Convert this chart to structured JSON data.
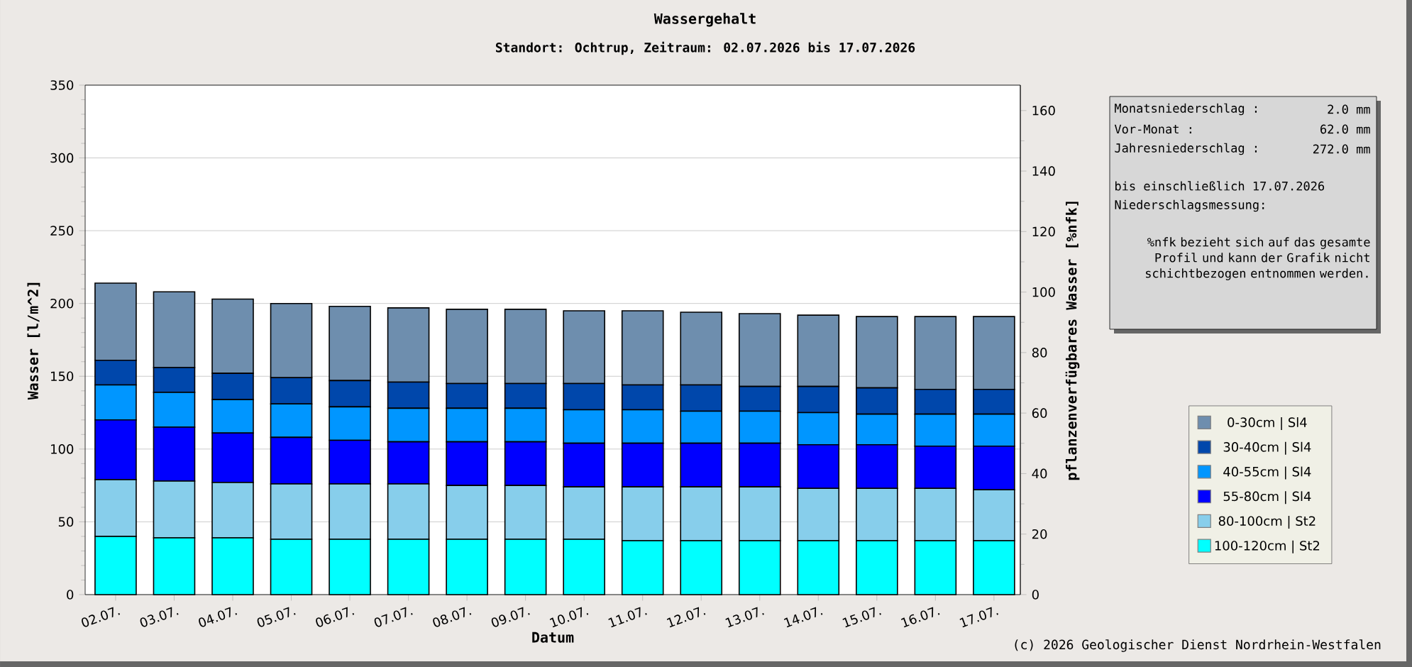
{
  "chart_data": {
    "type": "bar",
    "stacked": true,
    "title": "Wassergehalt",
    "subtitle": "Standort: Ochtrup, Zeitraum: 02.07.2026 bis 17.07.2026",
    "xlabel": "Datum",
    "ylabel": "Wasser [l/m^2]",
    "y2label": "pflanzenverfügbares Wasser [%nfk]",
    "categories": [
      "02.07.",
      "03.07.",
      "04.07.",
      "05.07.",
      "06.07.",
      "07.07.",
      "08.07.",
      "09.07.",
      "10.07.",
      "11.07.",
      "12.07.",
      "13.07.",
      "14.07.",
      "15.07.",
      "16.07.",
      "17.07."
    ],
    "series": [
      {
        "name": "100-120cm | St2",
        "color": "#00ffff",
        "values": [
          40,
          39,
          39,
          38,
          38,
          38,
          38,
          38,
          38,
          37,
          37,
          37,
          37,
          37,
          37,
          37
        ]
      },
      {
        "name": "80-100cm | St2",
        "color": "#87ceeb",
        "values": [
          39,
          39,
          38,
          38,
          38,
          38,
          37,
          37,
          36,
          37,
          37,
          37,
          36,
          36,
          36,
          35
        ]
      },
      {
        "name": "55-80cm | Sl4",
        "color": "#0000ff",
        "values": [
          41,
          37,
          34,
          32,
          30,
          29,
          30,
          30,
          30,
          30,
          30,
          30,
          30,
          30,
          29,
          30
        ]
      },
      {
        "name": "40-55cm | Sl4",
        "color": "#0096ff",
        "values": [
          24,
          24,
          23,
          23,
          23,
          23,
          23,
          23,
          23,
          23,
          22,
          22,
          22,
          21,
          22,
          22
        ]
      },
      {
        "name": "30-40cm | Sl4",
        "color": "#0047ab",
        "values": [
          17,
          17,
          18,
          18,
          18,
          18,
          17,
          17,
          18,
          17,
          18,
          17,
          18,
          18,
          17,
          17
        ]
      },
      {
        "name": "0-30cm | Sl4",
        "color": "#6e8eae",
        "values": [
          53,
          52,
          51,
          51,
          51,
          51,
          51,
          51,
          50,
          51,
          50,
          50,
          49,
          49,
          50,
          50
        ]
      }
    ],
    "ylim": [
      0,
      350
    ],
    "yticks": [
      0,
      50,
      100,
      150,
      200,
      250,
      300,
      350
    ],
    "y2lim": [
      0,
      168.4
    ],
    "y2ticks": [
      0,
      20,
      40,
      60,
      80,
      100,
      120,
      140,
      160
    ],
    "grid": "y",
    "legend": "right",
    "annotations": [
      "Monatsniederschlag :",
      "2.0 mm",
      "Vor-Monat :",
      "62.0 mm",
      "Jahresniederschlag :",
      "272.0 mm",
      "bis einschließlich 17.07.2026",
      "Niederschlagsmessung:",
      "%nfk bezieht sich auf das gesamte Profil und kann der Grafik nicht schichtbezogen entnommen werden.",
      "(c) 2026 Geologischer Dienst Nordrhein-Westfalen"
    ]
  }
}
